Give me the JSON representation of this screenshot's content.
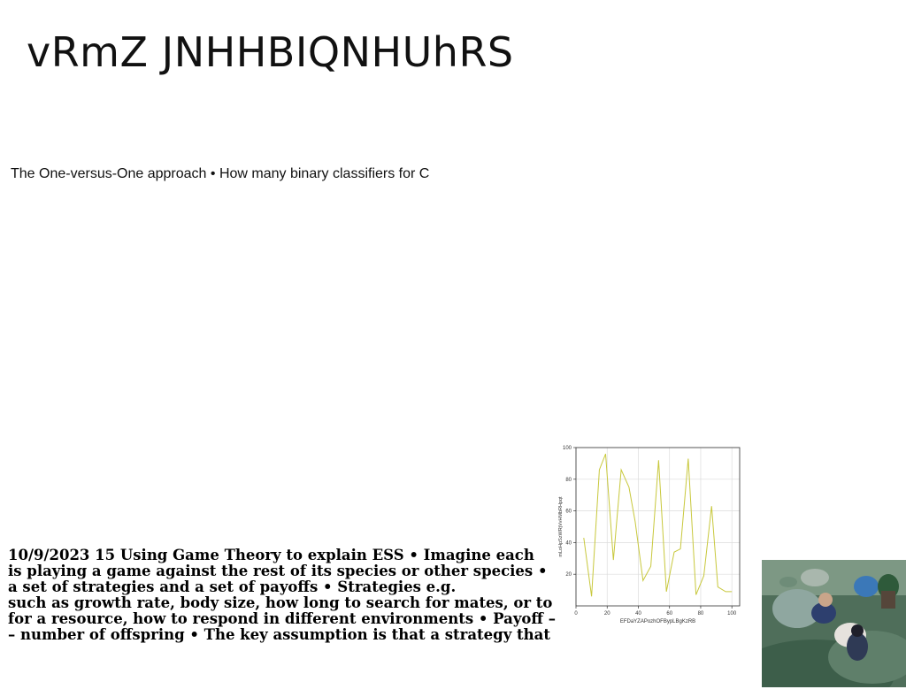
{
  "slide": {
    "title": "vRmZ JNHHBIQNHUhRS",
    "subtitle": "The One-versus-One approach • How many binary classifiers for C",
    "body_lines": [
      "10/9/2023 15 Using Game Theory to explain ESS • Imagine each",
      "is playing a game against the rest of its species or other species •",
      "a set of strategies and a set of payoffs • Strategies e.g.",
      "such as growth rate, body size, how long to search for mates, or to",
      "for a resource, how to respond in different environments • Payoff –",
      "– number of offspring • The key assumption is that a strategy that"
    ]
  },
  "chart_data": {
    "type": "line",
    "xlabel": "EFDaYZAPozhOFBypLBgKzRB",
    "ylabel": "mLoHpSzWRjVvHMbRHpqt",
    "x": [
      5,
      10,
      15,
      19,
      24,
      29,
      34,
      38,
      43,
      48,
      53,
      58,
      63,
      67,
      72,
      77,
      82,
      87,
      91,
      96,
      100
    ],
    "y": [
      43,
      6,
      86,
      96,
      29,
      86,
      75,
      53,
      16,
      25,
      92,
      9,
      34,
      36,
      93,
      7,
      19,
      63,
      12,
      9,
      9
    ],
    "xticks": [
      0,
      20,
      40,
      60,
      80,
      100
    ],
    "yticks": [
      20,
      40,
      60,
      80,
      100
    ],
    "xlim": [
      0,
      105
    ],
    "ylim": [
      0,
      100
    ],
    "grid": true,
    "line_color": "#c8c83c"
  },
  "photo": {
    "icon": "photo-image"
  }
}
